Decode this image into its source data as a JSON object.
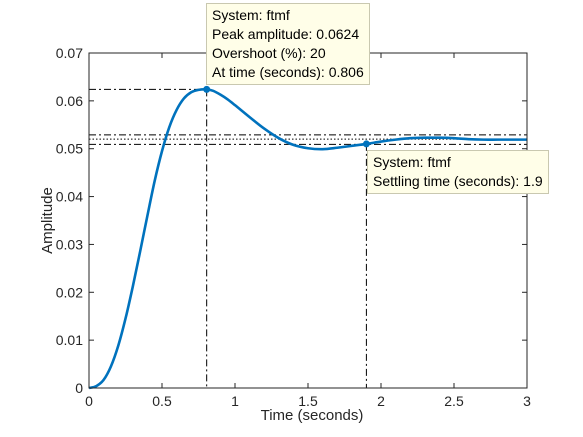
{
  "chart_data": {
    "type": "line",
    "xlabel": "Time (seconds)",
    "ylabel": "Amplitude",
    "xlim": [
      0,
      3
    ],
    "ylim": [
      0,
      0.07
    ],
    "xticks": [
      0,
      0.5,
      1,
      1.5,
      2,
      2.5,
      3
    ],
    "xtick_labels": [
      "0",
      "0.5",
      "1",
      "1.5",
      "2",
      "2.5",
      "3"
    ],
    "yticks": [
      0,
      0.01,
      0.02,
      0.03,
      0.04,
      0.05,
      0.06,
      0.07
    ],
    "ytick_labels": [
      "0",
      "0.01",
      "0.02",
      "0.03",
      "0.04",
      "0.05",
      "0.06",
      "0.07"
    ],
    "grid": false,
    "series": [
      {
        "color": "#0072bd",
        "x": [
          0,
          0.05,
          0.1,
          0.15,
          0.2,
          0.25,
          0.3,
          0.35,
          0.4,
          0.45,
          0.5,
          0.55,
          0.6,
          0.65,
          0.7,
          0.75,
          0.806,
          0.85,
          0.9,
          0.95,
          1.0,
          1.1,
          1.2,
          1.3,
          1.4,
          1.5,
          1.6,
          1.7,
          1.8,
          1.9,
          2.0,
          2.1,
          2.2,
          2.3,
          2.4,
          2.5,
          2.6,
          2.7,
          2.8,
          2.9,
          3.0
        ],
        "y": [
          0,
          0.0004,
          0.0017,
          0.0045,
          0.0088,
          0.0145,
          0.0212,
          0.0285,
          0.036,
          0.0433,
          0.0495,
          0.0545,
          0.0581,
          0.0605,
          0.0618,
          0.0623,
          0.0624,
          0.0621,
          0.0613,
          0.0603,
          0.0591,
          0.0566,
          0.0542,
          0.0522,
          0.0508,
          0.0501,
          0.0499,
          0.0502,
          0.0506,
          0.051,
          0.0515,
          0.0519,
          0.0522,
          0.0523,
          0.0523,
          0.0522,
          0.052,
          0.0519,
          0.0519,
          0.0519,
          0.0519
        ]
      }
    ],
    "reference_lines": {
      "steady_state": 0.052,
      "settling_band": [
        0.0509,
        0.0529
      ],
      "peak": {
        "x": 0.806,
        "y": 0.0624
      },
      "settling": {
        "x": 1.9,
        "y": 0.051
      }
    }
  },
  "datatips": {
    "peak": {
      "lines": [
        "System: ftmf",
        "Peak amplitude: 0.0624",
        "Overshoot (%): 20",
        "At time (seconds): 0.806"
      ]
    },
    "settling": {
      "lines": [
        "System: ftmf",
        "Settling time (seconds): 1.9"
      ]
    }
  },
  "colors": {
    "line": "#0072bd",
    "axes": "#262626",
    "tip_background": "#fffee8"
  }
}
